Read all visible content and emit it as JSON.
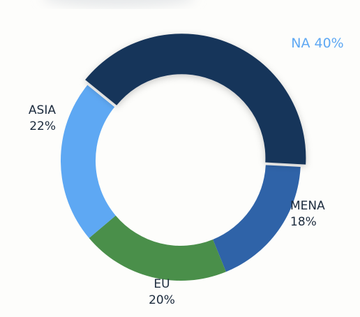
{
  "chart_data": {
    "type": "donut",
    "categories": [
      "NA",
      "MENA",
      "EU",
      "ASIA"
    ],
    "values": [
      40,
      18,
      20,
      22
    ],
    "value_labels": [
      "40%",
      "18%",
      "20%",
      "22%"
    ],
    "colors": [
      "#17345a",
      "#2f63a8",
      "#4a8f4a",
      "#5ea8f3"
    ],
    "exploded": [
      true,
      false,
      false,
      false
    ]
  }
}
